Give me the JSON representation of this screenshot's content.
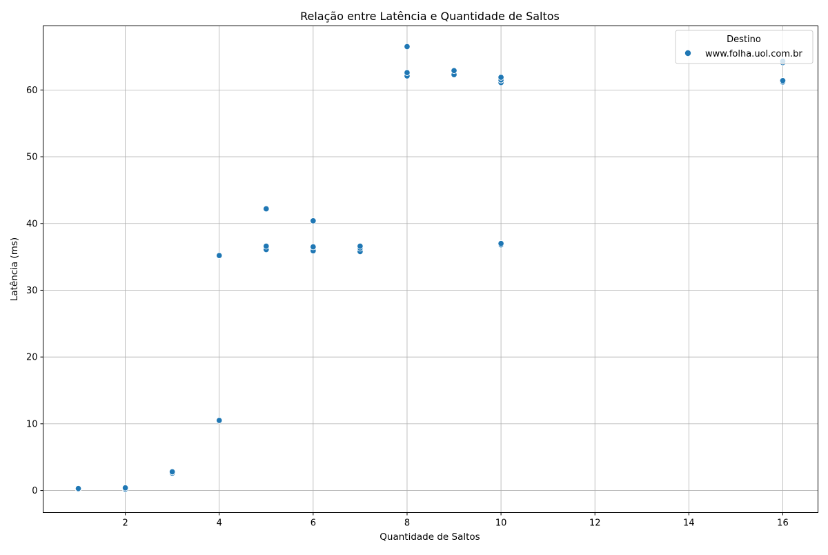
{
  "chart_data": {
    "type": "scatter",
    "title": "Relação entre Latência e Quantidade de Saltos",
    "xlabel": "Quantidade de Saltos",
    "ylabel": "Latência (ms)",
    "xlim": [
      0.25,
      16.75
    ],
    "ylim": [
      -3.3,
      69.6
    ],
    "xticks": [
      2,
      4,
      6,
      8,
      10,
      12,
      14,
      16
    ],
    "yticks": [
      0,
      10,
      20,
      30,
      40,
      50,
      60
    ],
    "grid": true,
    "legend": {
      "title": "Destino",
      "placement": "top-right"
    },
    "series": [
      {
        "name": "www.folha.uol.com.br",
        "color": "#1f77b4",
        "points": [
          [
            1,
            0.2
          ],
          [
            1,
            0.3
          ],
          [
            2,
            0.2
          ],
          [
            2,
            0.4
          ],
          [
            3,
            2.6
          ],
          [
            3,
            2.8
          ],
          [
            4,
            10.5
          ],
          [
            4,
            35.2
          ],
          [
            5,
            36.1
          ],
          [
            5,
            36.6
          ],
          [
            5,
            42.2
          ],
          [
            6,
            35.9
          ],
          [
            6,
            36.5
          ],
          [
            6,
            40.4
          ],
          [
            7,
            35.8
          ],
          [
            7,
            36.3
          ],
          [
            7,
            36.6
          ],
          [
            8,
            62.1
          ],
          [
            8,
            62.6
          ],
          [
            8,
            66.5
          ],
          [
            9,
            62.3
          ],
          [
            9,
            62.9
          ],
          [
            10,
            61.1
          ],
          [
            10,
            61.5
          ],
          [
            10,
            61.9
          ],
          [
            10,
            36.8
          ],
          [
            10,
            37.0
          ],
          [
            16,
            61.2
          ],
          [
            16,
            61.4
          ],
          [
            16,
            64.1
          ],
          [
            16,
            64.3
          ]
        ]
      }
    ]
  }
}
